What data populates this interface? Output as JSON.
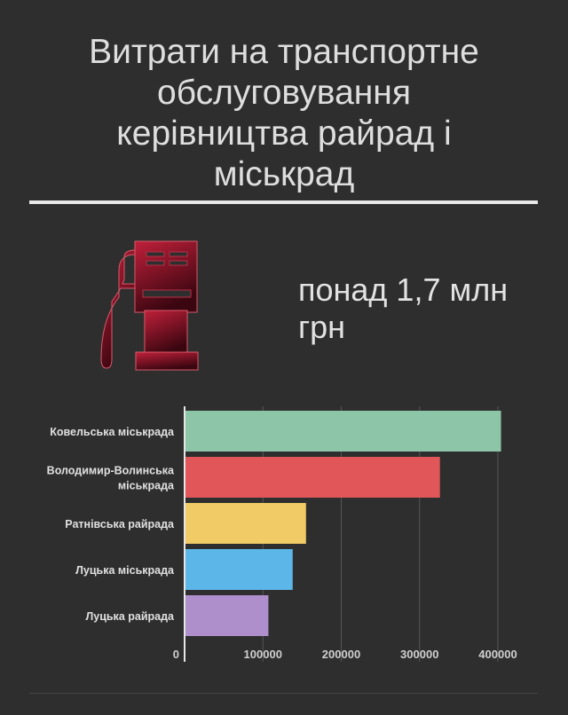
{
  "title_lines": [
    "Витрати на транспортне",
    "обслуговування",
    "керівництва райрад і",
    "міськрад"
  ],
  "summary_lines": [
    "понад 1,7 млн",
    "грн"
  ],
  "icon": "gas-pump-icon",
  "chart_data": {
    "type": "bar",
    "orientation": "horizontal",
    "categories": [
      [
        "Ковельська міськрада"
      ],
      [
        "Володимир-Волинська",
        "міськрада"
      ],
      [
        "Ратнівська райрада"
      ],
      [
        "Луцька міськрада"
      ],
      [
        "Луцька райрада"
      ]
    ],
    "values": [
      404000,
      326000,
      155000,
      138000,
      107000
    ],
    "colors": [
      "#8dc5a8",
      "#e05659",
      "#f1cb66",
      "#5db6e8",
      "#ae8fcb"
    ],
    "xlim": [
      0,
      400000
    ],
    "xticks": [
      "0",
      "100000",
      "200000",
      "300000",
      "400000"
    ],
    "xtick_values": [
      0,
      100000,
      200000,
      300000,
      400000
    ],
    "grid": true,
    "legend": "none"
  }
}
